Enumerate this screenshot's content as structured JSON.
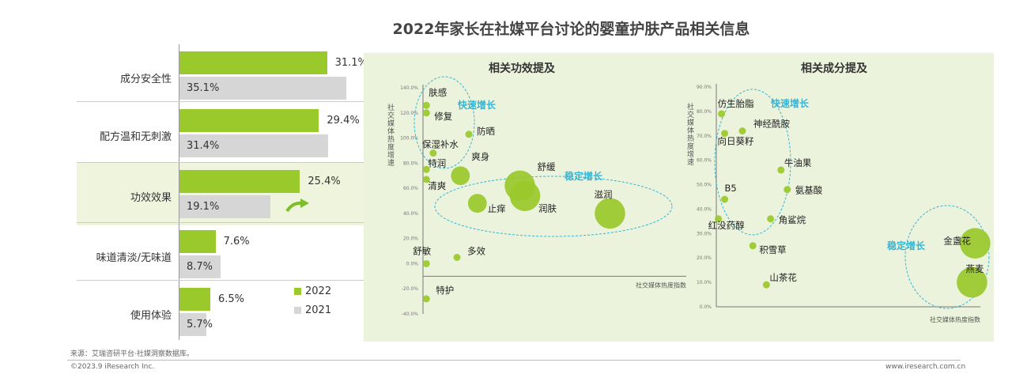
{
  "title": "2022年家长在社媒平台讨论的婴童护肤产品相关信息",
  "colors": {
    "y2022": "#9ac92b",
    "y2021": "#d6d6d6",
    "panel": "#ecf3dc",
    "bubble": "#9ac92b",
    "annot": "#35b6d6",
    "arrow": "#7cbf2a"
  },
  "bar_chart": {
    "categories": [
      "成分安全性",
      "配方温和无刺激",
      "功效效果",
      "味道清淡/无味道",
      "使用体验"
    ],
    "y2022": [
      31.1,
      29.4,
      25.4,
      7.6,
      6.5
    ],
    "y2021": [
      35.1,
      31.4,
      19.1,
      8.7,
      5.7
    ],
    "y2022_labels": [
      "31.1%",
      "29.4%",
      "25.4%",
      "7.6%",
      "6.5%"
    ],
    "y2021_labels": [
      "35.1%",
      "31.4%",
      "19.1%",
      "8.7%",
      "5.7%"
    ],
    "legend": {
      "a": "2022",
      "b": "2021"
    }
  },
  "chart_data": [
    {
      "type": "scatter",
      "title": "相关功效提及",
      "ylabel": "社交媒体热度增速",
      "xlabel": "社交媒体热度指数",
      "ylim": [
        -40,
        140
      ],
      "yticks": [
        "140.0%",
        "120.0%",
        "100.0%",
        "80.0%",
        "60.0%",
        "40.0%",
        "20.0%",
        "0.0%",
        "-20.0%",
        "-40.0%"
      ],
      "points": [
        {
          "label": "肤感",
          "x": 2,
          "y": 126,
          "size": 1
        },
        {
          "label": "修复",
          "x": 2,
          "y": 120,
          "size": 1
        },
        {
          "label": "保湿补水",
          "x": 6,
          "y": 88,
          "size": 1
        },
        {
          "label": "防晒",
          "x": 27,
          "y": 103,
          "size": 1
        },
        {
          "label": "特润",
          "x": 2,
          "y": 75,
          "size": 1
        },
        {
          "label": "爽身",
          "x": 22,
          "y": 70,
          "size": 3
        },
        {
          "label": "清爽",
          "x": 2,
          "y": 67,
          "size": 1
        },
        {
          "label": "舒缓",
          "x": 57,
          "y": 62,
          "size": 5
        },
        {
          "label": "止痒",
          "x": 32,
          "y": 48,
          "size": 3
        },
        {
          "label": "润肤",
          "x": 60,
          "y": 54,
          "size": 5
        },
        {
          "label": "滋润",
          "x": 110,
          "y": 40,
          "size": 5
        },
        {
          "label": "保湿",
          "x": 170,
          "y": 25,
          "size": 6
        },
        {
          "label": "舒敏",
          "x": 2,
          "y": 0,
          "size": 1
        },
        {
          "label": "多效",
          "x": 20,
          "y": 5,
          "size": 1
        },
        {
          "label": "特护",
          "x": 2,
          "y": -28,
          "size": 1
        }
      ],
      "annotations": [
        "快速增长",
        "稳定增长"
      ]
    },
    {
      "type": "scatter",
      "title": "相关成分提及",
      "ylabel": "社交媒体热度增速",
      "xlabel": "社交媒体热度指数",
      "ylim": [
        0,
        90
      ],
      "yticks": [
        "90.0%",
        "80.0%",
        "70.0%",
        "60.0%",
        "50.0%",
        "40.0%",
        "30.0%",
        "20.0%",
        "10.0%",
        "0.0%"
      ],
      "points": [
        {
          "label": "仿生胎脂",
          "x": 5,
          "y": 79,
          "size": 1
        },
        {
          "label": "神经酰胺",
          "x": 25,
          "y": 72,
          "size": 1
        },
        {
          "label": "向日葵籽",
          "x": 8,
          "y": 71,
          "size": 1
        },
        {
          "label": "牛油果",
          "x": 62,
          "y": 56,
          "size": 1
        },
        {
          "label": "B5",
          "x": 8,
          "y": 44,
          "size": 1
        },
        {
          "label": "氨基酸",
          "x": 68,
          "y": 48,
          "size": 1
        },
        {
          "label": "红没药醇",
          "x": 2,
          "y": 36,
          "size": 1
        },
        {
          "label": "角鲨烷",
          "x": 52,
          "y": 36,
          "size": 1
        },
        {
          "label": "积雪草",
          "x": 35,
          "y": 25,
          "size": 1
        },
        {
          "label": "山茶花",
          "x": 48,
          "y": 9,
          "size": 1
        },
        {
          "label": "金盏花",
          "x": 248,
          "y": 26,
          "size": 5
        },
        {
          "label": "燕麦",
          "x": 245,
          "y": 10,
          "size": 5
        }
      ],
      "annotations": [
        "快速增长",
        "稳定增长"
      ]
    }
  ],
  "footer": {
    "source": "来源：艾瑞咨研平台·社媒洞察数据库。",
    "copyright": "©2023.9 iResearch Inc.",
    "url": "www.iresearch.com.cn"
  }
}
